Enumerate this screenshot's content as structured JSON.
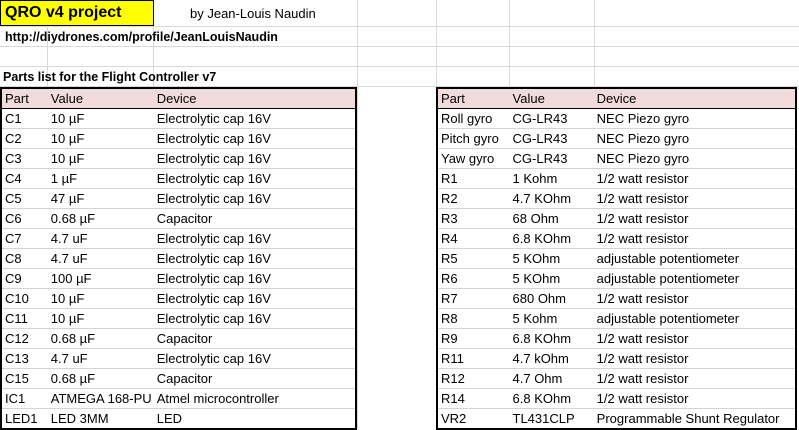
{
  "header": {
    "title": "QRO v4 project",
    "author": "by Jean-Louis Naudin",
    "url": "http://diydrones.com/profile/JeanLouisNaudin",
    "parts_title": "Parts list for the Flight Controller v7"
  },
  "left_table": {
    "columns": [
      "Part",
      "Value",
      "Device"
    ],
    "rows": [
      [
        "C1",
        "10 µF",
        "Electrolytic cap 16V"
      ],
      [
        "C2",
        "10 µF",
        "Electrolytic cap 16V"
      ],
      [
        "C3",
        "10 µF",
        "Electrolytic cap 16V"
      ],
      [
        "C4",
        "1 µF",
        "Electrolytic cap 16V"
      ],
      [
        "C5",
        "47 µF",
        "Electrolytic cap 16V"
      ],
      [
        "C6",
        "0.68 µF",
        "Capacitor"
      ],
      [
        "C7",
        "4.7 uF",
        "Electrolytic cap 16V"
      ],
      [
        "C8",
        "4.7 uF",
        "Electrolytic cap 16V"
      ],
      [
        "C9",
        "100 µF",
        "Electrolytic cap 16V"
      ],
      [
        "C10",
        "10 µF",
        "Electrolytic cap 16V"
      ],
      [
        "C11",
        "10 µF",
        "Electrolytic cap 16V"
      ],
      [
        "C12",
        "0.68 µF",
        "Capacitor"
      ],
      [
        "C13",
        "4.7 uF",
        "Electrolytic cap 16V"
      ],
      [
        "C15",
        "0.68 µF",
        "Capacitor"
      ],
      [
        "IC1",
        "ATMEGA 168-PU",
        "Atmel microcontroller"
      ],
      [
        "LED1",
        "LED 3MM",
        "LED"
      ]
    ]
  },
  "right_table": {
    "columns": [
      "Part",
      "Value",
      "Device"
    ],
    "rows": [
      [
        "Roll gyro",
        "CG-LR43",
        "NEC Piezo gyro"
      ],
      [
        "Pitch gyro",
        "CG-LR43",
        "NEC Piezo gyro"
      ],
      [
        "Yaw gyro",
        "CG-LR43",
        "NEC Piezo gyro"
      ],
      [
        "R1",
        "1 Kohm",
        "1/2 watt resistor"
      ],
      [
        "R2",
        "4.7 KOhm",
        "1/2 watt resistor"
      ],
      [
        "R3",
        "68 Ohm",
        "1/2 watt resistor"
      ],
      [
        "R4",
        "6.8 KOhm",
        "1/2 watt resistor"
      ],
      [
        "R5",
        "5 KOhm",
        "adjustable potentiometer"
      ],
      [
        "R6",
        "5 KOhm",
        "adjustable potentiometer"
      ],
      [
        "R7",
        "680 Ohm",
        "1/2 watt resistor"
      ],
      [
        "R8",
        "5 Kohm",
        "adjustable potentiometer"
      ],
      [
        "R9",
        "6.8 KOhm",
        "1/2 watt resistor"
      ],
      [
        "R11",
        "4.7 kOhm",
        "1/2 watt resistor"
      ],
      [
        "R12",
        "4.7 Ohm",
        "1/2 watt resistor"
      ],
      [
        "R14",
        "6.8 KOhm",
        "1/2 watt resistor"
      ],
      [
        "VR2",
        "TL431CLP",
        "Programmable Shunt Regulator"
      ]
    ]
  },
  "colors": {
    "title_fill": "#ffff00",
    "header_fill": "#f2dcdb",
    "gridline": "#d9d9d9"
  }
}
